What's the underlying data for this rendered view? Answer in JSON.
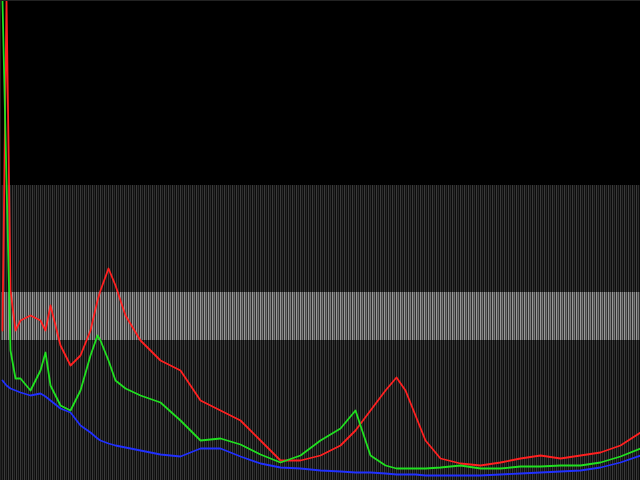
{
  "chart_data": {
    "type": "line",
    "x": [
      2,
      6,
      10,
      15,
      20,
      30,
      40,
      45,
      50,
      60,
      70,
      80,
      90,
      97,
      100,
      108,
      115,
      125,
      140,
      160,
      180,
      200,
      220,
      240,
      260,
      280,
      300,
      320,
      340,
      355,
      370,
      385,
      396,
      405,
      415,
      425,
      440,
      460,
      480,
      500,
      520,
      540,
      560,
      580,
      600,
      620,
      640
    ],
    "series": [
      {
        "color": "#ff2020",
        "values": [
          150,
          480,
          190,
          150,
          160,
          165,
          160,
          150,
          175,
          135,
          115,
          125,
          150,
          180,
          190,
          212,
          195,
          165,
          140,
          120,
          110,
          80,
          70,
          60,
          40,
          20,
          20,
          25,
          35,
          50,
          70,
          90,
          103,
          90,
          65,
          40,
          22,
          17,
          15,
          18,
          22,
          25,
          22,
          25,
          28,
          35,
          48
        ]
      },
      {
        "color": "#20e020",
        "values": [
          480,
          300,
          130,
          102,
          102,
          90,
          110,
          128,
          95,
          75,
          70,
          90,
          125,
          145,
          140,
          120,
          100,
          92,
          85,
          78,
          60,
          40,
          42,
          36,
          26,
          18,
          25,
          40,
          52,
          70,
          25,
          15,
          12,
          12,
          12,
          12,
          13,
          15,
          12,
          12,
          14,
          14,
          15,
          15,
          18,
          24,
          32
        ]
      },
      {
        "color": "#2030ff",
        "values": [
          100,
          95,
          92,
          90,
          88,
          85,
          87,
          84,
          80,
          72,
          68,
          55,
          48,
          42,
          40,
          37,
          35,
          33,
          30,
          26,
          24,
          32,
          32,
          24,
          17,
          13,
          12,
          10,
          9,
          8,
          8,
          7,
          6,
          6,
          6,
          5,
          5,
          5,
          5,
          6,
          7,
          8,
          9,
          10,
          13,
          18,
          25
        ]
      }
    ],
    "xlim": [
      0,
      640
    ],
    "ylim": [
      0,
      480
    ],
    "tick_labels": false
  }
}
